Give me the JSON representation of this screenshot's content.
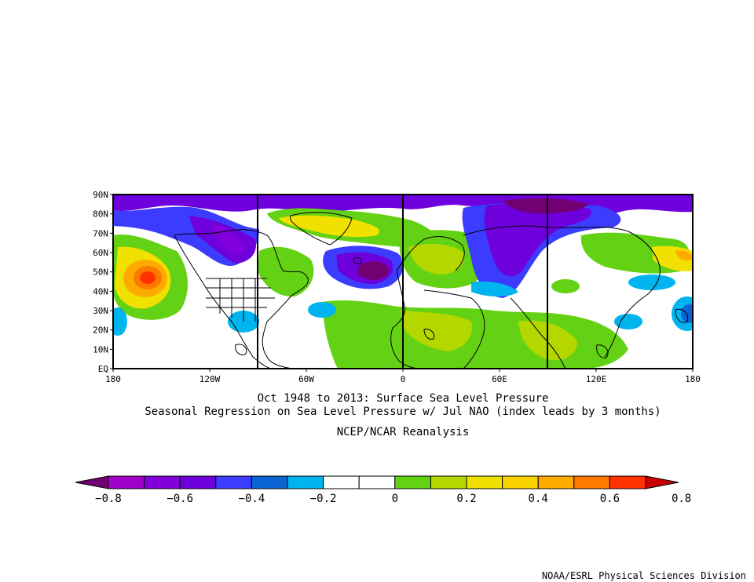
{
  "title": {
    "line1": "Oct 1948 to 2013: Surface Sea Level Pressure",
    "line2": "Seasonal Regression on Sea Level Pressure  w/ Jul NAO (index leads by 3 months)",
    "line3": "NCEP/NCAR Reanalysis"
  },
  "credit": "NOAA/ESRL Physical Sciences Division",
  "map": {
    "lat_labels": [
      "90N",
      "80N",
      "70N",
      "60N",
      "50N",
      "40N",
      "30N",
      "20N",
      "10N",
      "EQ"
    ],
    "lon_labels": [
      "180",
      "120W",
      "60W",
      "0",
      "60E",
      "120E",
      "180"
    ]
  },
  "colorbar": {
    "colors": [
      "#730073",
      "#a000c8",
      "#8200dc",
      "#6e00dc",
      "#3c3cff",
      "#0a64d2",
      "#00b4f0",
      "#ffffff",
      "#ffffff",
      "#64d214",
      "#b4d700",
      "#f0e100",
      "#fbd300",
      "#ffaa00",
      "#ff7800",
      "#ff3200",
      "#c80000"
    ],
    "labels": [
      "−0.8",
      "−0.6",
      "−0.4",
      "−0.2",
      "0",
      "0.2",
      "0.4",
      "0.6",
      "0.8"
    ]
  }
}
